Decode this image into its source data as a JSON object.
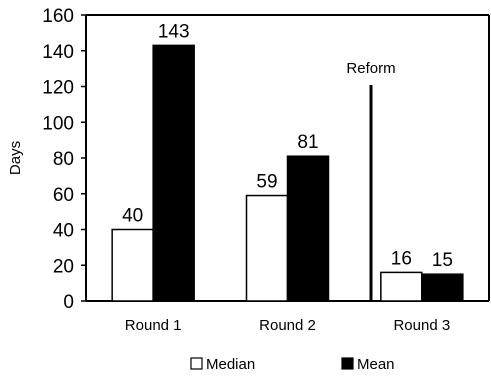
{
  "chart_data": {
    "type": "bar",
    "categories": [
      "Round 1",
      "Round 2",
      "Round 3"
    ],
    "series": [
      {
        "name": "Median",
        "values": [
          40,
          59,
          16
        ],
        "color": "#ffffff"
      },
      {
        "name": "Mean",
        "values": [
          143,
          81,
          15
        ],
        "color": "#000000"
      }
    ],
    "data_labels": [
      [
        "40",
        "59",
        "16"
      ],
      [
        "143",
        "81",
        "15"
      ]
    ],
    "ylabel": "Days",
    "xlabel": "",
    "ylim": [
      0,
      160
    ],
    "yticks": [
      0,
      20,
      40,
      60,
      80,
      100,
      120,
      140,
      160
    ],
    "grid": false,
    "legend": "bottom",
    "annotation": {
      "text": "Reform",
      "position": "between Round 2 and Round 3"
    }
  }
}
